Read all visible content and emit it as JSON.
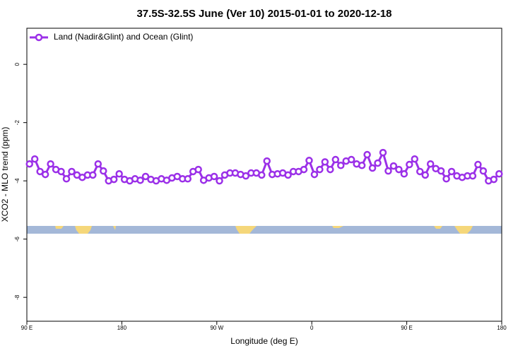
{
  "chart_data": {
    "type": "line",
    "title": "37.5S-32.5S June (Ver 10)   2015-01-01 to 2020-12-18",
    "x_label": "Longitude (deg E)",
    "y_label": "XCO2 - MLO trend (ppm)",
    "xlim": [
      90,
      540
    ],
    "ylim": [
      -8.82,
      1.24
    ],
    "xticks": [
      {
        "value": 90,
        "label": "90 E"
      },
      180,
      {
        "value": 270,
        "label": "90 W"
      },
      {
        "value": 360,
        "label": "0"
      },
      {
        "value": 450,
        "label": "90 E"
      },
      {
        "value": 540,
        "label": "180"
      }
    ],
    "yticks": [
      0,
      -2,
      -4,
      -6,
      -8
    ],
    "legend": "top-left",
    "x": [
      92.5,
      97.5,
      102.5,
      107.5,
      112.5,
      117.5,
      122.5,
      127.5,
      132.5,
      137.5,
      142.5,
      147.5,
      152.5,
      157.5,
      162.5,
      167.5,
      172.5,
      177.5,
      182.5,
      187.5,
      192.5,
      197.5,
      202.5,
      207.5,
      212.5,
      217.5,
      222.5,
      227.5,
      232.5,
      237.5,
      242.5,
      247.5,
      252.5,
      257.5,
      262.5,
      267.5,
      272.5,
      277.5,
      282.5,
      287.5,
      292.5,
      297.5,
      302.5,
      307.5,
      312.5,
      317.5,
      322.5,
      327.5,
      332.5,
      337.5,
      342.5,
      347.5,
      352.5,
      357.5,
      362.5,
      367.5,
      372.5,
      377.5,
      382.5,
      387.5,
      392.5,
      397.5,
      402.5,
      407.5,
      412.5,
      417.5,
      422.5,
      427.5,
      432.5,
      437.5,
      442.5,
      447.5,
      452.5,
      457.5,
      462.5,
      467.5,
      472.5,
      477.5,
      482.5,
      487.5,
      492.5,
      497.5,
      502.5,
      507.5,
      512.5,
      517.5,
      522.5,
      527.5,
      532.5,
      537.5
    ],
    "series": [
      {
        "name": "Land (Nadir&Glint) and Ocean (Glint)",
        "color": "#9b30e8",
        "values": [
          -3.42,
          -3.25,
          -3.68,
          -3.78,
          -3.42,
          -3.61,
          -3.68,
          -3.93,
          -3.68,
          -3.8,
          -3.88,
          -3.8,
          -3.8,
          -3.42,
          -3.66,
          -4.0,
          -3.95,
          -3.76,
          -3.95,
          -4.0,
          -3.93,
          -3.98,
          -3.85,
          -3.95,
          -4.0,
          -3.93,
          -3.98,
          -3.9,
          -3.85,
          -3.93,
          -3.93,
          -3.68,
          -3.61,
          -3.98,
          -3.9,
          -3.85,
          -4.0,
          -3.8,
          -3.73,
          -3.73,
          -3.78,
          -3.83,
          -3.73,
          -3.73,
          -3.8,
          -3.32,
          -3.78,
          -3.76,
          -3.73,
          -3.8,
          -3.68,
          -3.68,
          -3.61,
          -3.3,
          -3.78,
          -3.61,
          -3.35,
          -3.61,
          -3.27,
          -3.47,
          -3.32,
          -3.27,
          -3.42,
          -3.47,
          -3.1,
          -3.56,
          -3.39,
          -3.03,
          -3.66,
          -3.49,
          -3.61,
          -3.76,
          -3.44,
          -3.25,
          -3.68,
          -3.8,
          -3.42,
          -3.58,
          -3.66,
          -3.93,
          -3.68,
          -3.83,
          -3.88,
          -3.83,
          -3.83,
          -3.44,
          -3.66,
          -4.0,
          -3.95,
          -3.76
        ]
      }
    ]
  }
}
